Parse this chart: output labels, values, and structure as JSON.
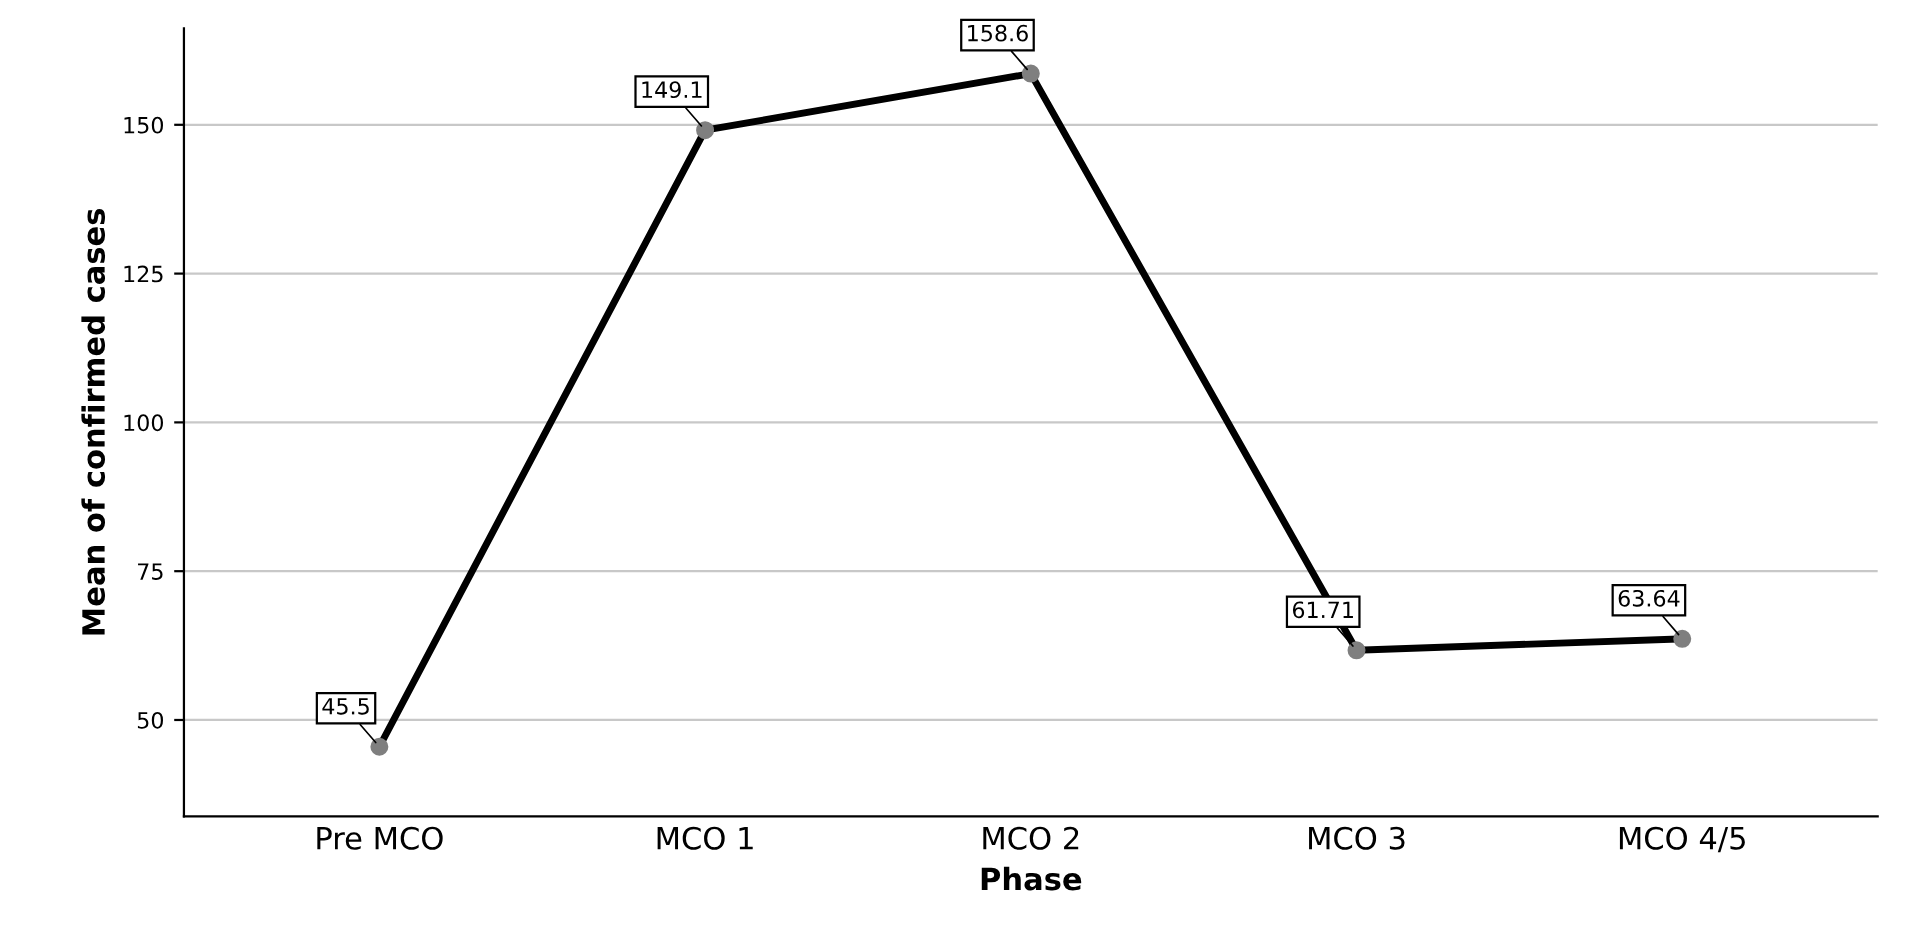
{
  "chart_data": {
    "type": "line",
    "xlabel": "Phase",
    "ylabel": "Mean of confirmed cases",
    "categories": [
      "Pre MCO",
      "MCO 1",
      "MCO 2",
      "MCO 3",
      "MCO 4/5"
    ],
    "series": [
      {
        "color": "#000000",
        "colors": [
          "#7f7f7f",
          "#7f7f7f",
          "#7f7f7f",
          "#7f7f7f",
          "#7f7f7f"
        ],
        "values": [
          45.5,
          149.1,
          158.6,
          61.71,
          63.64
        ]
      }
    ],
    "ylim": [
      33.8,
      166.2
    ],
    "yticks": [
      50,
      75,
      100,
      125,
      150
    ],
    "grid": "y",
    "marker": "circle",
    "line_style": "solid",
    "data_labels": true
  }
}
